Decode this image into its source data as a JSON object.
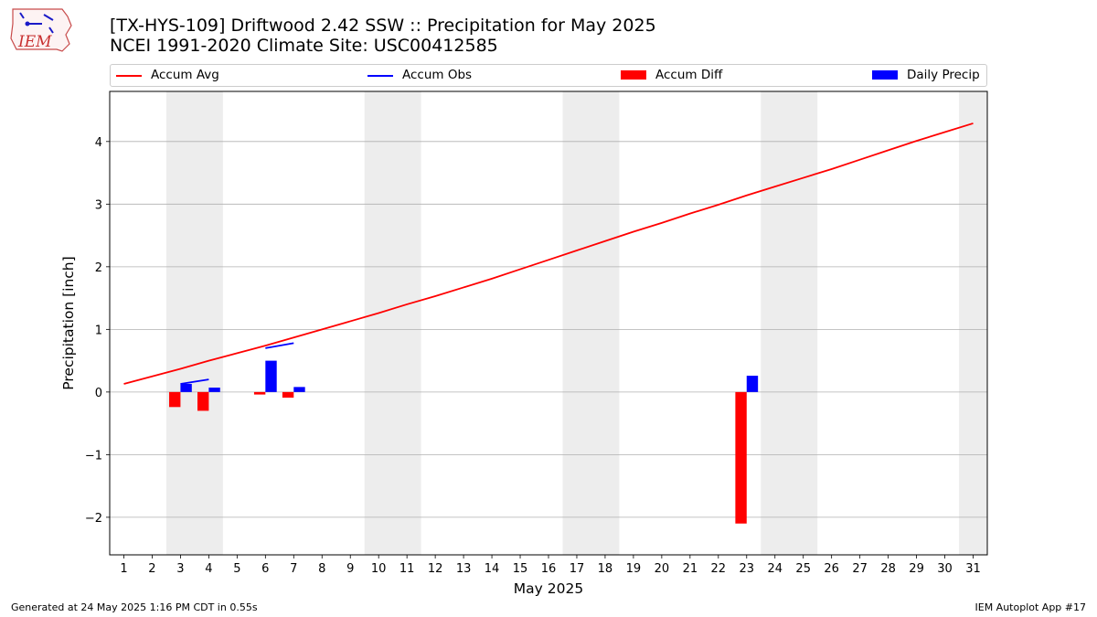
{
  "header": {
    "title_line1": "[TX-HYS-109] Driftwood 2.42 SSW :: Precipitation for May 2025",
    "title_line2": "NCEI 1991-2020 Climate Site: USC00412585"
  },
  "logo": {
    "text": "IEM"
  },
  "legend": [
    {
      "label": "Accum Avg",
      "kind": "line",
      "color": "#ff0000"
    },
    {
      "label": "Accum Obs",
      "kind": "line",
      "color": "#0000ff"
    },
    {
      "label": "Accum Diff",
      "kind": "patch",
      "color": "#ff0000"
    },
    {
      "label": "Daily Precip",
      "kind": "patch",
      "color": "#0000ff"
    }
  ],
  "footer": {
    "left": "Generated at 24 May 2025 1:16 PM CDT in 0.55s",
    "right": "IEM Autoplot App #17"
  },
  "chart_data": {
    "type": "bar",
    "xlabel": "May 2025",
    "ylabel": "Precipitation [inch]",
    "xlim": [
      0.5,
      31.5
    ],
    "ylim": [
      -2.6,
      4.8
    ],
    "x_ticks": [
      1,
      2,
      3,
      4,
      5,
      6,
      7,
      8,
      9,
      10,
      11,
      12,
      13,
      14,
      15,
      16,
      17,
      18,
      19,
      20,
      21,
      22,
      23,
      24,
      25,
      26,
      27,
      28,
      29,
      30,
      31
    ],
    "y_ticks": [
      -2,
      -1,
      0,
      1,
      2,
      3,
      4
    ],
    "y_tick_labels": [
      "−2",
      "−1",
      "0",
      "1",
      "2",
      "3",
      "4"
    ],
    "grid": "horizontal",
    "legend_position": "top",
    "weekend_shading": [
      [
        2.5,
        4.5
      ],
      [
        9.5,
        11.5
      ],
      [
        16.5,
        18.5
      ],
      [
        23.5,
        25.5
      ],
      [
        30.5,
        31.5
      ]
    ],
    "accum_avg": {
      "days": [
        1,
        2,
        3,
        4,
        5,
        6,
        7,
        8,
        9,
        10,
        11,
        12,
        13,
        14,
        15,
        16,
        17,
        18,
        19,
        20,
        21,
        22,
        23,
        24,
        25,
        26,
        27,
        28,
        29,
        30,
        31
      ],
      "values": [
        0.13,
        0.25,
        0.37,
        0.5,
        0.62,
        0.74,
        0.87,
        1.0,
        1.13,
        1.26,
        1.4,
        1.53,
        1.67,
        1.81,
        1.96,
        2.11,
        2.26,
        2.41,
        2.56,
        2.7,
        2.85,
        2.99,
        3.14,
        3.28,
        3.42,
        3.56,
        3.71,
        3.86,
        4.01,
        4.15,
        4.29
      ],
      "color": "#ff0000"
    },
    "accum_obs": {
      "segments": [
        {
          "days": [
            3,
            4
          ],
          "values": [
            0.13,
            0.2
          ]
        },
        {
          "days": [
            6,
            7
          ],
          "values": [
            0.7,
            0.78
          ]
        }
      ],
      "color": "#0000ff"
    },
    "accum_diff": {
      "days": [
        3,
        4,
        6,
        7,
        23
      ],
      "values": [
        -0.24,
        -0.3,
        -0.04,
        -0.09,
        -2.1
      ],
      "color": "#ff0000"
    },
    "daily_precip": {
      "days": [
        3,
        4,
        6,
        7,
        23
      ],
      "values": [
        0.13,
        0.07,
        0.5,
        0.08,
        0.26
      ],
      "color": "#0000ff"
    }
  }
}
